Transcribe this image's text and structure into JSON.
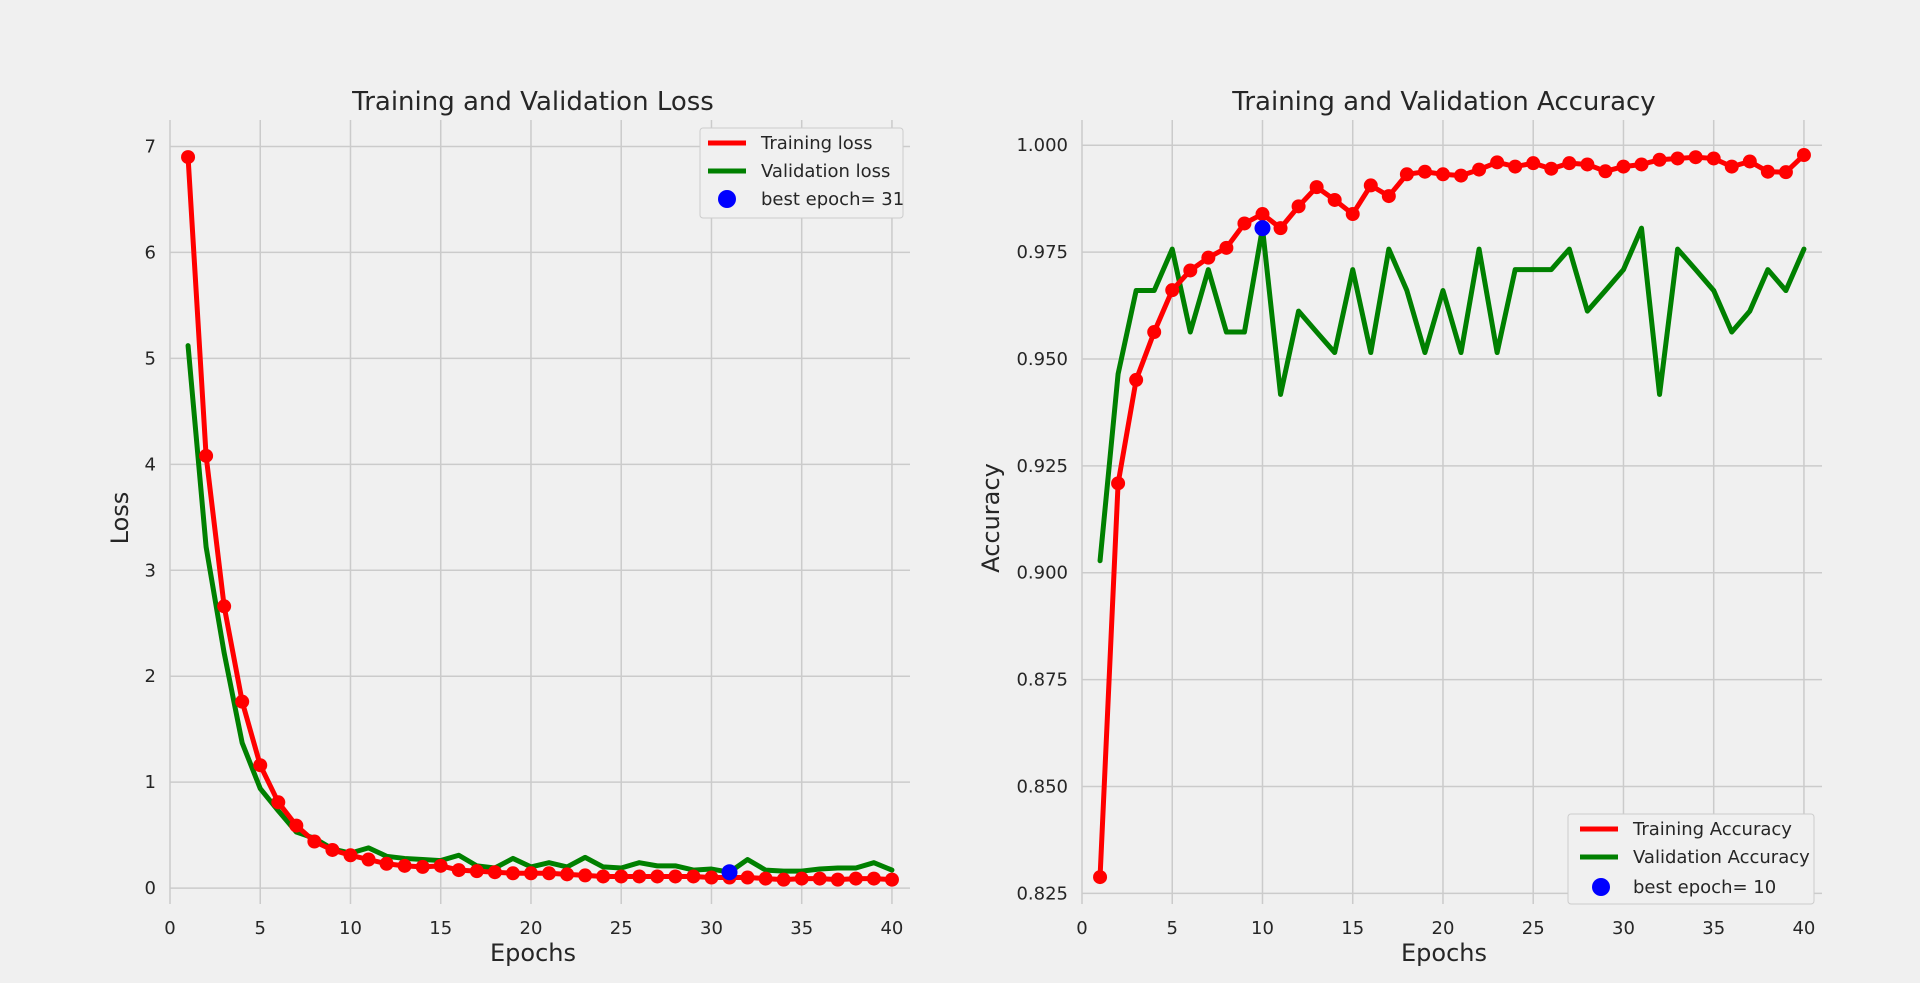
{
  "colors": {
    "training": "#ff0000",
    "validation": "#008000",
    "best": "#0000ff",
    "background": "#f0f0f0",
    "grid": "#cbcbcb"
  },
  "chart_data": [
    {
      "type": "line",
      "title": "Training and Validation Loss",
      "xlabel": "Epochs",
      "ylabel": "Loss",
      "xlim": [
        0,
        41
      ],
      "ylim": [
        -0.15,
        7.25
      ],
      "xticks": [
        "0",
        "5",
        "10",
        "15",
        "20",
        "25",
        "30",
        "35",
        "40"
      ],
      "yticks": [
        "0",
        "1",
        "2",
        "3",
        "4",
        "5",
        "6",
        "7"
      ],
      "grid": true,
      "legend_position": "top-right",
      "x": [
        1,
        2,
        3,
        4,
        5,
        6,
        7,
        8,
        9,
        10,
        11,
        12,
        13,
        14,
        15,
        16,
        17,
        18,
        19,
        20,
        21,
        22,
        23,
        24,
        25,
        26,
        27,
        28,
        29,
        30,
        31,
        32,
        33,
        34,
        35,
        36,
        37,
        38,
        39,
        40
      ],
      "series": [
        {
          "name": "Training loss",
          "color": "#ff0000",
          "markers": true,
          "values": [
            6.9,
            4.08,
            2.66,
            1.76,
            1.16,
            0.81,
            0.59,
            0.44,
            0.36,
            0.31,
            0.27,
            0.23,
            0.21,
            0.2,
            0.21,
            0.17,
            0.16,
            0.15,
            0.14,
            0.14,
            0.14,
            0.13,
            0.12,
            0.11,
            0.11,
            0.11,
            0.11,
            0.11,
            0.11,
            0.1,
            0.1,
            0.1,
            0.09,
            0.08,
            0.09,
            0.09,
            0.08,
            0.09,
            0.09,
            0.08
          ]
        },
        {
          "name": "Validation loss",
          "color": "#008000",
          "markers": false,
          "values": [
            5.12,
            3.22,
            2.22,
            1.37,
            0.94,
            0.73,
            0.53,
            0.47,
            0.37,
            0.33,
            0.38,
            0.3,
            0.28,
            0.27,
            0.26,
            0.31,
            0.21,
            0.19,
            0.28,
            0.2,
            0.24,
            0.2,
            0.29,
            0.2,
            0.19,
            0.24,
            0.21,
            0.21,
            0.17,
            0.18,
            0.15,
            0.27,
            0.17,
            0.16,
            0.16,
            0.18,
            0.19,
            0.19,
            0.24,
            0.17
          ]
        }
      ],
      "best_point": {
        "label": "best epoch= 31",
        "x": 31,
        "y": 0.15
      }
    },
    {
      "type": "line",
      "title": "Training and Validation Accuracy",
      "xlabel": "Epochs",
      "ylabel": "Accuracy",
      "xlim": [
        0,
        41
      ],
      "ylim": [
        0.8225,
        1.0059
      ],
      "xticks": [
        "0",
        "5",
        "10",
        "15",
        "20",
        "25",
        "30",
        "35",
        "40"
      ],
      "yticks": [
        "0.825",
        "0.850",
        "0.875",
        "0.900",
        "0.925",
        "0.950",
        "0.975",
        "1.000"
      ],
      "grid": true,
      "legend_position": "bottom-right",
      "x": [
        1,
        2,
        3,
        4,
        5,
        6,
        7,
        8,
        9,
        10,
        11,
        12,
        13,
        14,
        15,
        16,
        17,
        18,
        19,
        20,
        21,
        22,
        23,
        24,
        25,
        26,
        27,
        28,
        29,
        30,
        31,
        32,
        33,
        34,
        35,
        36,
        37,
        38,
        39,
        40
      ],
      "series": [
        {
          "name": "Training Accuracy",
          "color": "#ff0000",
          "markers": true,
          "values": [
            0.8288,
            0.9209,
            0.9451,
            0.9563,
            0.9661,
            0.9707,
            0.9737,
            0.976,
            0.9817,
            0.9839,
            0.9806,
            0.9857,
            0.9902,
            0.9872,
            0.9839,
            0.9906,
            0.9881,
            0.9932,
            0.9938,
            0.9932,
            0.9929,
            0.9943,
            0.996,
            0.995,
            0.9958,
            0.9945,
            0.9958,
            0.9955,
            0.9939,
            0.995,
            0.9955,
            0.9966,
            0.9969,
            0.9972,
            0.9969,
            0.995,
            0.9962,
            0.9938,
            0.9937,
            0.9977
          ]
        },
        {
          "name": "Validation Accuracy",
          "color": "#008000",
          "markers": false,
          "values": [
            0.9028,
            0.9465,
            0.966,
            0.966,
            0.9757,
            0.9563,
            0.9709,
            0.9563,
            0.9563,
            0.9806,
            0.9417,
            0.9612,
            0.9563,
            0.9515,
            0.9709,
            0.9515,
            0.9757,
            0.966,
            0.9515,
            0.966,
            0.9515,
            0.9757,
            0.9515,
            0.9709,
            0.9709,
            0.9709,
            0.9757,
            0.9612,
            0.966,
            0.9709,
            0.9806,
            0.9417,
            0.9757,
            0.9709,
            0.966,
            0.9563,
            0.9612,
            0.9709,
            0.966,
            0.9757
          ]
        }
      ],
      "best_point": {
        "label": "best epoch= 10",
        "x": 10,
        "y": 0.9806
      }
    }
  ]
}
